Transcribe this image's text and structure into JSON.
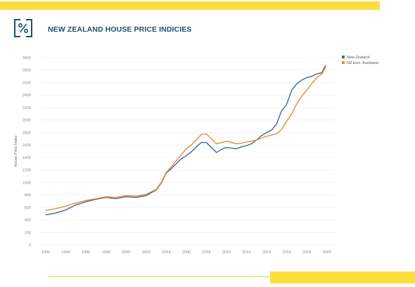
{
  "header": {
    "title": "NEW ZEALAND HOUSE PRICE INDICIES",
    "logo_icon": "percent-logo-icon",
    "accent_color": "#fbdf3e",
    "title_color": "#1f4e73"
  },
  "chart_data": {
    "type": "line",
    "title": "NEW ZEALAND HOUSE PRICE INDICIES",
    "xlabel": "",
    "ylabel": "House Price Index",
    "xlim": [
      1991.5,
      2020.8
    ],
    "ylim": [
      0,
      3000
    ],
    "x_ticks": [
      "1992",
      "1994",
      "1996",
      "1998",
      "2000",
      "2002",
      "2004",
      "2006",
      "2008",
      "2010",
      "2012",
      "2014",
      "2016",
      "2018",
      "2020"
    ],
    "y_ticks": [
      "0",
      "200",
      "400",
      "600",
      "800",
      "1000",
      "1200",
      "1400",
      "1600",
      "1800",
      "2000",
      "2200",
      "2400",
      "2600",
      "2800",
      "3000"
    ],
    "grid": true,
    "legend_position": "top-right",
    "series": [
      {
        "name": "New Zealand",
        "color": "#3f6a98",
        "x": [
          1992,
          1993,
          1994,
          1995,
          1996,
          1997,
          1998,
          1999,
          2000,
          2001,
          2002,
          2003,
          2003.5,
          2004,
          2004.5,
          2005,
          2005.5,
          2006,
          2006.5,
          2007,
          2007.5,
          2008,
          2008.5,
          2009,
          2009.5,
          2010,
          2010.5,
          2011,
          2011.5,
          2012,
          2012.5,
          2013,
          2013.5,
          2014,
          2014.5,
          2015,
          2015.5,
          2016,
          2016.5,
          2017,
          2017.5,
          2018,
          2018.5,
          2019,
          2019.5,
          2019.9
        ],
        "y": [
          480,
          510,
          560,
          640,
          690,
          730,
          760,
          740,
          770,
          760,
          790,
          880,
          990,
          1150,
          1220,
          1300,
          1380,
          1430,
          1490,
          1570,
          1640,
          1640,
          1560,
          1480,
          1530,
          1560,
          1550,
          1540,
          1570,
          1590,
          1620,
          1680,
          1750,
          1800,
          1840,
          1940,
          2150,
          2250,
          2480,
          2580,
          2640,
          2680,
          2700,
          2740,
          2760,
          2880
        ]
      },
      {
        "name": "NZ Excl. Auckland",
        "color": "#ee8a2f",
        "x": [
          1992,
          1993,
          1994,
          1995,
          1996,
          1997,
          1998,
          1999,
          2000,
          2001,
          2002,
          2003,
          2003.5,
          2004,
          2004.5,
          2005,
          2005.5,
          2006,
          2006.5,
          2007,
          2007.5,
          2008,
          2008.5,
          2009,
          2009.5,
          2010,
          2010.5,
          2011,
          2011.5,
          2012,
          2012.5,
          2013,
          2013.5,
          2014,
          2014.5,
          2015,
          2015.5,
          2016,
          2016.5,
          2017,
          2017.5,
          2018,
          2018.5,
          2019,
          2019.5,
          2019.9
        ],
        "y": [
          550,
          580,
          620,
          670,
          710,
          740,
          770,
          760,
          790,
          780,
          810,
          890,
          1000,
          1160,
          1250,
          1350,
          1440,
          1540,
          1600,
          1680,
          1770,
          1780,
          1700,
          1620,
          1640,
          1660,
          1640,
          1620,
          1630,
          1650,
          1660,
          1680,
          1710,
          1740,
          1760,
          1780,
          1850,
          1980,
          2100,
          2260,
          2380,
          2480,
          2580,
          2680,
          2740,
          2850
        ]
      }
    ]
  }
}
